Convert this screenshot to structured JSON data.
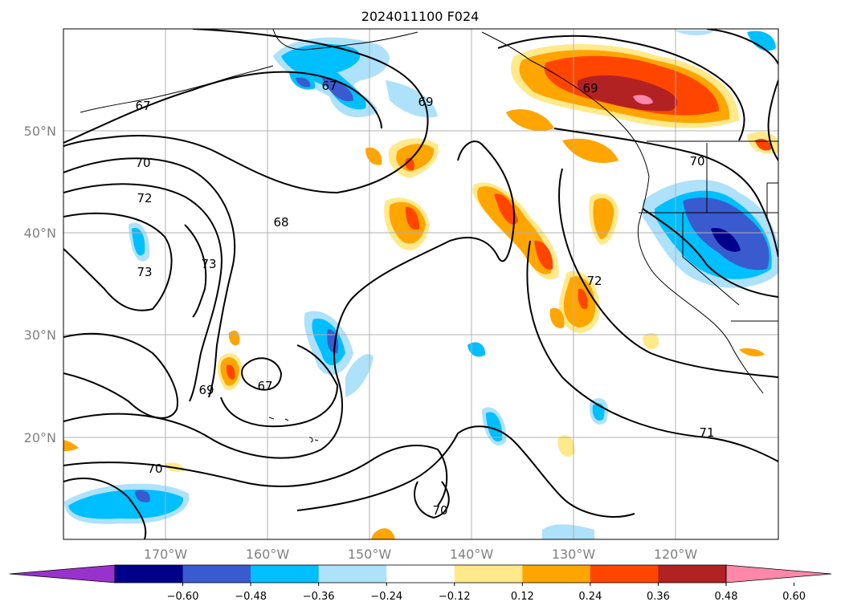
{
  "map": {
    "title": "2024011100 F024",
    "projection": "equirectangular",
    "lon_range": [
      -180,
      -110
    ],
    "lat_range": [
      10,
      60
    ],
    "latitude_labels": [
      "50°N",
      "40°N",
      "30°N",
      "20°N"
    ],
    "longitude_labels": [
      "170°W",
      "160°W",
      "150°W",
      "140°W",
      "130°W",
      "120°W"
    ],
    "gridlines": true,
    "contour_labels": [
      "67",
      "67",
      "69",
      "69",
      "70",
      "70",
      "70",
      "70",
      "72",
      "72",
      "73",
      "73",
      "68",
      "67",
      "69",
      "71"
    ],
    "colorbar": {
      "orientation": "horizontal",
      "extend": "both",
      "tick_labels": [
        "−0.60",
        "−0.48",
        "−0.36",
        "−0.24",
        "−0.12",
        "0.12",
        "0.24",
        "0.36",
        "0.48",
        "0.60"
      ],
      "colors": [
        "#9932cc",
        "#00008b",
        "#3a5bcf",
        "#00bfff",
        "#aee1fa",
        "#ffffff",
        "#ffe98a",
        "#ffa500",
        "#ff4500",
        "#b22222",
        "#ff88aa"
      ]
    }
  }
}
